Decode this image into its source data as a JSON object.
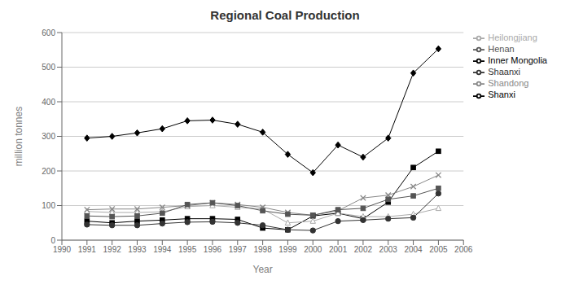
{
  "chart_data": {
    "type": "line",
    "title": "Regional Coal Production",
    "xlabel": "Year",
    "ylabel": "million tonnes",
    "x": [
      1991,
      1992,
      1993,
      1994,
      1995,
      1996,
      1997,
      1998,
      1999,
      2000,
      2001,
      2002,
      2003,
      2004,
      2005
    ],
    "xlim": [
      1990,
      2006
    ],
    "xticks": [
      1990,
      1991,
      1992,
      1993,
      1994,
      1995,
      1996,
      1997,
      1998,
      1999,
      2000,
      2001,
      2002,
      2003,
      2004,
      2005,
      2006
    ],
    "ylim": [
      0,
      600
    ],
    "yticks": [
      0,
      100,
      200,
      300,
      400,
      500,
      600
    ],
    "grid": "y",
    "legend": "right",
    "series": [
      {
        "name": "Shanxi",
        "color": "#000000",
        "marker": "diamond",
        "values": [
          295,
          300,
          310,
          322,
          345,
          347,
          335,
          312,
          248,
          195,
          275,
          240,
          295,
          483,
          553
        ]
      },
      {
        "name": "Inner Mongolia",
        "color": "#000000",
        "marker": "square",
        "values": [
          55,
          50,
          55,
          58,
          62,
          62,
          60,
          35,
          30,
          70,
          78,
          62,
          110,
          210,
          257
        ]
      },
      {
        "name": "Heilongjiang",
        "color": "#aaaaaa",
        "marker": "triangle",
        "values": [
          83,
          80,
          80,
          82,
          97,
          100,
          95,
          90,
          50,
          55,
          78,
          68,
          68,
          75,
          92
        ]
      },
      {
        "name": "Shandong",
        "color": "#888888",
        "marker": "cross",
        "values": [
          88,
          90,
          90,
          95,
          100,
          108,
          103,
          95,
          80,
          72,
          85,
          122,
          130,
          155,
          188
        ]
      },
      {
        "name": "Henan",
        "color": "#555555",
        "marker": "square",
        "values": [
          70,
          68,
          70,
          78,
          103,
          108,
          100,
          85,
          75,
          72,
          88,
          92,
          118,
          128,
          150
        ]
      },
      {
        "name": "Shaanxi",
        "color": "#333333",
        "marker": "circle",
        "values": [
          45,
          43,
          43,
          48,
          52,
          53,
          50,
          43,
          30,
          28,
          55,
          58,
          62,
          65,
          135
        ]
      }
    ]
  }
}
